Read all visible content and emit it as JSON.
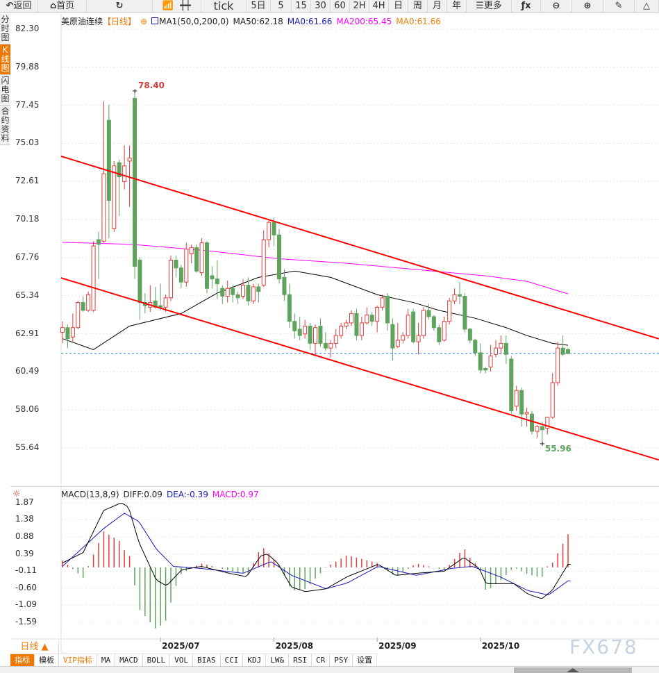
{
  "toolbar": {
    "items": [
      {
        "label": "返回",
        "icon": "back-arrow-icon"
      },
      {
        "label": "首页",
        "icon": "home-icon"
      },
      {
        "label": "",
        "icon": "refresh-icon"
      },
      {
        "label": "",
        "icon": "chart-bars-icon"
      },
      {
        "label": "",
        "icon": "candlestick-icon"
      },
      {
        "label": "tick"
      },
      {
        "label": "5日"
      },
      {
        "label": "5"
      },
      {
        "label": "15"
      },
      {
        "label": "30"
      },
      {
        "label": "60"
      },
      {
        "label": "2H"
      },
      {
        "label": "4H"
      },
      {
        "label": "日"
      },
      {
        "label": "周"
      },
      {
        "label": "月"
      },
      {
        "label": "年"
      },
      {
        "label": "更多",
        "icon": "menu-icon"
      },
      {
        "label": "",
        "icon": "fx-icon"
      },
      {
        "label": "",
        "icon": "zoom-out-icon"
      },
      {
        "label": "",
        "icon": "zoom-in-icon"
      },
      {
        "label": "",
        "icon": "pen-icon"
      },
      {
        "label": "",
        "icon": "triangle-icon"
      }
    ]
  },
  "left_tabs": [
    {
      "label": "分时图"
    },
    {
      "label": "K线图",
      "active": true
    },
    {
      "label": "闪电图"
    },
    {
      "label": "合约资料"
    }
  ],
  "legend": {
    "symbol": "美原油连续",
    "period": "【日线】",
    "indicator": "MA1(50,0,200,0)",
    "ma50": "MA50:62.18",
    "ma0a": "MA0:61.66",
    "ma200": "MA200:65.45",
    "ma0b": "MA0:61.66"
  },
  "macd_legend": {
    "name": "MACD(13,8,9)",
    "diff": "DIFF:0.09",
    "dea": "DEA:-0.39",
    "macd": "MACD:0.97"
  },
  "colors": {
    "up": "#e03c3c",
    "down": "#5ea35e",
    "ma50": "#000000",
    "ma200": "#ff00ff",
    "channel": "#ff0000",
    "diff": "#000000",
    "dea": "#1a1ab8",
    "accent": "#f07800"
  },
  "period_button": "日线 ▲",
  "bottom_tabs": [
    {
      "label": "指标",
      "active": true
    },
    {
      "label": "模板"
    },
    {
      "label": "VIP指标",
      "vip": true
    },
    {
      "label": "MA"
    },
    {
      "label": "MACD"
    },
    {
      "label": "BOLL"
    },
    {
      "label": "VOL"
    },
    {
      "label": "BIAS"
    },
    {
      "label": "CCI"
    },
    {
      "label": "KDJ"
    },
    {
      "label": "LW&"
    },
    {
      "label": "RSI"
    },
    {
      "label": "CR"
    },
    {
      "label": "PSY"
    },
    {
      "label": "设置"
    }
  ],
  "watermark": "FX678",
  "chart_data": [
    {
      "type": "candlestick",
      "title": "美原油连续",
      "period": "日线",
      "y_ticks": [
        "82.30",
        "79.88",
        "77.45",
        "75.03",
        "72.61",
        "70.18",
        "67.76",
        "65.34",
        "62.91",
        "60.49",
        "58.06",
        "55.64"
      ],
      "x_ticks": [
        {
          "index": 19,
          "label": "2025/07"
        },
        {
          "index": 41,
          "label": "2025/08"
        },
        {
          "index": 61,
          "label": "2025/09"
        },
        {
          "index": 81,
          "label": "2025/10"
        }
      ],
      "high_label": "78.40",
      "low_label": "55.96",
      "current_price": 61.66,
      "ohlc": [
        [
          63.0,
          63.7,
          62.3,
          63.3
        ],
        [
          63.3,
          63.5,
          62.0,
          62.6
        ],
        [
          62.7,
          64.2,
          62.4,
          63.3
        ],
        [
          63.3,
          65.0,
          63.2,
          64.9
        ],
        [
          64.9,
          65.3,
          64.3,
          64.4
        ],
        [
          64.4,
          65.6,
          64.3,
          65.4
        ],
        [
          64.4,
          68.8,
          64.3,
          68.5
        ],
        [
          68.9,
          69.4,
          66.4,
          68.6
        ],
        [
          68.8,
          77.7,
          68.7,
          73.1
        ],
        [
          76.5,
          77.5,
          69.0,
          71.4
        ],
        [
          69.6,
          73.9,
          69.4,
          73.6
        ],
        [
          73.8,
          74.0,
          70.4,
          72.9
        ],
        [
          72.6,
          74.9,
          72.1,
          73.6
        ],
        [
          73.9,
          74.9,
          71.0,
          74.1
        ],
        [
          77.9,
          78.4,
          66.4,
          67.2
        ],
        [
          67.6,
          67.8,
          63.8,
          64.9
        ],
        [
          64.9,
          65.5,
          64.2,
          64.7
        ],
        [
          64.6,
          66.0,
          64.3,
          64.9
        ],
        [
          65.0,
          65.9,
          64.5,
          64.6
        ],
        [
          64.7,
          66.1,
          64.4,
          64.6
        ],
        [
          64.6,
          65.4,
          64.3,
          65.2
        ],
        [
          65.2,
          67.9,
          65.0,
          67.6
        ],
        [
          67.6,
          67.9,
          66.5,
          67.1
        ],
        [
          67.1,
          67.3,
          65.8,
          66.2
        ],
        [
          66.2,
          68.7,
          65.9,
          68.3
        ],
        [
          68.0,
          68.6,
          67.4,
          68.4
        ],
        [
          68.4,
          68.6,
          66.8,
          66.9
        ],
        [
          66.8,
          69.0,
          66.6,
          68.7
        ],
        [
          68.7,
          68.8,
          65.5,
          65.8
        ],
        [
          66.6,
          67.2,
          65.8,
          66.4
        ],
        [
          66.4,
          67.6,
          65.1,
          66.1
        ],
        [
          65.8,
          66.0,
          64.8,
          65.3
        ],
        [
          65.3,
          66.3,
          64.9,
          65.8
        ],
        [
          65.8,
          66.0,
          64.9,
          65.4
        ],
        [
          65.4,
          65.6,
          64.8,
          65.2
        ],
        [
          65.3,
          66.4,
          65.1,
          66.0
        ],
        [
          66.0,
          66.5,
          64.7,
          65.0
        ],
        [
          65.0,
          66.1,
          64.8,
          65.9
        ],
        [
          65.9,
          66.1,
          64.9,
          65.6
        ],
        [
          66.0,
          69.5,
          65.9,
          68.9
        ],
        [
          68.9,
          70.2,
          68.4,
          70.0
        ],
        [
          70.0,
          70.3,
          68.5,
          69.2
        ],
        [
          69.2,
          69.6,
          66.1,
          66.4
        ],
        [
          66.5,
          67.0,
          65.0,
          65.4
        ],
        [
          65.4,
          66.1,
          63.3,
          63.7
        ],
        [
          63.7,
          64.2,
          62.6,
          63.1
        ],
        [
          63.2,
          64.0,
          62.5,
          62.8
        ],
        [
          62.9,
          63.8,
          62.6,
          63.4
        ],
        [
          63.4,
          63.6,
          61.9,
          62.3
        ],
        [
          62.3,
          63.5,
          61.5,
          63.3
        ],
        [
          63.4,
          63.9,
          62.1,
          62.3
        ],
        [
          62.3,
          63.0,
          61.8,
          62.0
        ],
        [
          62.0,
          62.5,
          61.4,
          62.3
        ],
        [
          62.3,
          63.2,
          62.0,
          62.8
        ],
        [
          62.8,
          63.6,
          62.6,
          63.4
        ],
        [
          63.4,
          63.8,
          63.2,
          63.6
        ],
        [
          63.6,
          64.4,
          63.4,
          64.2
        ],
        [
          64.2,
          64.5,
          62.5,
          62.8
        ],
        [
          62.8,
          64.0,
          62.5,
          63.6
        ],
        [
          63.6,
          64.6,
          63.5,
          64.1
        ],
        [
          64.1,
          64.3,
          63.4,
          63.7
        ],
        [
          63.7,
          64.7,
          63.0,
          64.6
        ],
        [
          64.6,
          65.4,
          64.4,
          65.2
        ],
        [
          65.3,
          65.5,
          63.1,
          63.6
        ],
        [
          63.5,
          63.9,
          61.2,
          62.0
        ],
        [
          62.1,
          63.6,
          62.0,
          62.5
        ],
        [
          62.5,
          63.0,
          62.3,
          62.8
        ],
        [
          62.8,
          64.5,
          62.6,
          64.1
        ],
        [
          64.3,
          64.5,
          62.3,
          62.4
        ],
        [
          62.4,
          63.6,
          61.6,
          62.8
        ],
        [
          62.8,
          64.6,
          62.6,
          64.4
        ],
        [
          64.4,
          64.8,
          63.8,
          64.0
        ],
        [
          64.0,
          64.1,
          63.1,
          63.3
        ],
        [
          63.3,
          63.5,
          62.2,
          62.4
        ],
        [
          62.5,
          64.0,
          62.4,
          63.7
        ],
        [
          63.7,
          65.2,
          63.5,
          65.0
        ],
        [
          65.0,
          65.8,
          64.8,
          65.4
        ],
        [
          65.4,
          66.2,
          64.8,
          65.3
        ],
        [
          65.3,
          65.5,
          63.0,
          63.2
        ],
        [
          63.2,
          63.3,
          62.3,
          62.5
        ],
        [
          62.5,
          62.6,
          61.5,
          61.7
        ],
        [
          61.7,
          62.3,
          60.4,
          60.6
        ],
        [
          60.7,
          60.8,
          60.4,
          60.6
        ],
        [
          60.8,
          62.2,
          60.5,
          61.5
        ],
        [
          61.6,
          62.5,
          61.4,
          62.0
        ],
        [
          62.0,
          62.8,
          61.6,
          62.3
        ],
        [
          62.3,
          62.8,
          61.0,
          61.6
        ],
        [
          61.3,
          61.5,
          57.8,
          58.0
        ],
        [
          58.3,
          59.6,
          58.0,
          59.3
        ],
        [
          59.3,
          59.5,
          57.0,
          57.8
        ],
        [
          57.8,
          58.2,
          57.0,
          57.9
        ],
        [
          57.8,
          58.0,
          56.5,
          56.7
        ],
        [
          56.7,
          57.1,
          56.3,
          57.0
        ],
        [
          57.0,
          57.3,
          55.96,
          56.8
        ],
        [
          56.9,
          57.6,
          56.5,
          57.6
        ],
        [
          57.6,
          60.4,
          57.5,
          59.8
        ],
        [
          59.8,
          62.4,
          59.6,
          62.0
        ],
        [
          62.0,
          62.8,
          61.5,
          61.6
        ],
        [
          61.9,
          62.0,
          61.6,
          61.66
        ]
      ],
      "ma50": [
        [
          0,
          62.6
        ],
        [
          6,
          61.9
        ],
        [
          13,
          63.4
        ],
        [
          23,
          64.2
        ],
        [
          30,
          65.5
        ],
        [
          38,
          66.5
        ],
        [
          45,
          66.9
        ],
        [
          52,
          66.5
        ],
        [
          61,
          65.4
        ],
        [
          68,
          64.9
        ],
        [
          73,
          64.4
        ],
        [
          80,
          63.9
        ],
        [
          86,
          63.3
        ],
        [
          90,
          62.8
        ],
        [
          95,
          62.3
        ],
        [
          98,
          62.18
        ]
      ],
      "ma200": [
        [
          0,
          68.73
        ],
        [
          13.5,
          68.6
        ],
        [
          28,
          68.2
        ],
        [
          41.5,
          67.7
        ],
        [
          55,
          67.4
        ],
        [
          68.5,
          67.0
        ],
        [
          82,
          66.6
        ],
        [
          90,
          66.25
        ],
        [
          98,
          65.45
        ]
      ],
      "trendlines": [
        [
          [
            -0.3,
            74.21
          ],
          [
            115.6,
            62.59
          ]
        ],
        [
          [
            -0.3,
            66.47
          ],
          [
            115.6,
            54.88
          ]
        ]
      ]
    },
    {
      "type": "macd",
      "params": "13,8,9",
      "y_ticks": [
        "1.87",
        "1.38",
        "0.88",
        "0.39",
        "-0.11",
        "-0.60",
        "-1.09",
        "-1.59"
      ],
      "diff": [
        [
          0,
          0.13
        ],
        [
          4,
          0.43
        ],
        [
          8,
          1.65
        ],
        [
          11.4,
          1.87
        ],
        [
          12.8,
          1.75
        ],
        [
          14.8,
          0.73
        ],
        [
          18.2,
          -0.37
        ],
        [
          20.2,
          -0.53
        ],
        [
          23.1,
          -0.07
        ],
        [
          26.9,
          0.03
        ],
        [
          32.3,
          -0.17
        ],
        [
          35.7,
          -0.27
        ],
        [
          38.4,
          0.33
        ],
        [
          39.7,
          0.39
        ],
        [
          41.7,
          0.13
        ],
        [
          44.4,
          -0.57
        ],
        [
          47.1,
          -0.7
        ],
        [
          51.1,
          -0.62
        ],
        [
          55.2,
          -0.27
        ],
        [
          61.2,
          0.09
        ],
        [
          64.6,
          -0.23
        ],
        [
          68.6,
          -0.17
        ],
        [
          74,
          -0.11
        ],
        [
          77.8,
          0.29
        ],
        [
          80.8,
          -0.03
        ],
        [
          82.1,
          -0.47
        ],
        [
          87.5,
          -0.47
        ],
        [
          90.2,
          -0.77
        ],
        [
          92.9,
          -0.91
        ],
        [
          94.9,
          -0.67
        ],
        [
          98,
          0.09
        ]
      ],
      "dea": [
        [
          0,
          0.03
        ],
        [
          8,
          1.13
        ],
        [
          12,
          1.57
        ],
        [
          14.8,
          1.33
        ],
        [
          18.2,
          0.53
        ],
        [
          21.5,
          0.03
        ],
        [
          26.9,
          -0.03
        ],
        [
          35,
          -0.17
        ],
        [
          40.4,
          0.17
        ],
        [
          44.4,
          -0.23
        ],
        [
          51.1,
          -0.62
        ],
        [
          55.2,
          -0.45
        ],
        [
          61.2,
          0.03
        ],
        [
          68.6,
          -0.23
        ],
        [
          75.4,
          -0.03
        ],
        [
          79.4,
          0.03
        ],
        [
          84.8,
          -0.27
        ],
        [
          90.2,
          -0.67
        ],
        [
          94.2,
          -0.8
        ],
        [
          98,
          -0.39
        ]
      ]
    }
  ]
}
